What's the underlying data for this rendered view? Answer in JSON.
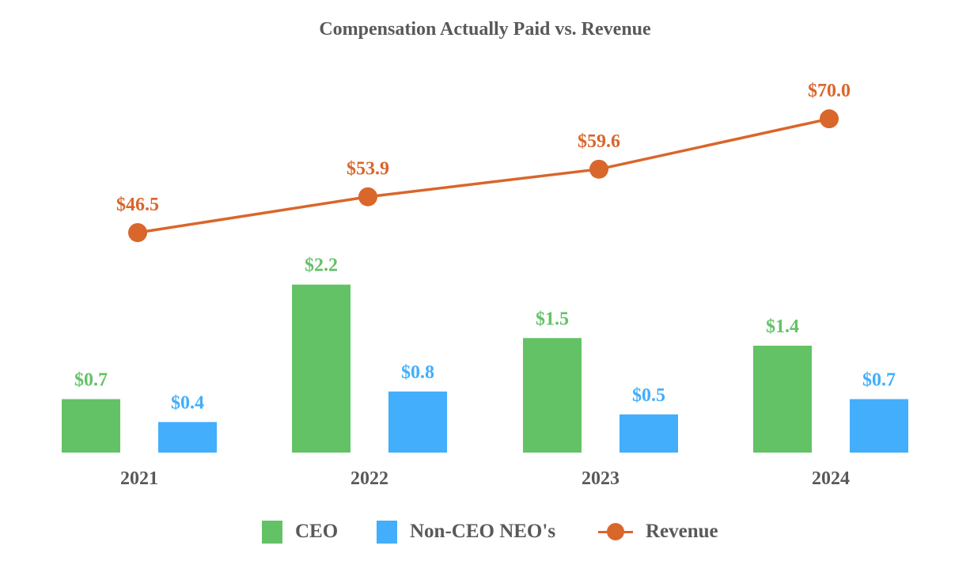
{
  "chart_data": {
    "type": "bar+line",
    "title": "Compensation Actually Paid vs. Revenue",
    "categories": [
      "2021",
      "2022",
      "2023",
      "2024"
    ],
    "series": [
      {
        "name": "CEO",
        "kind": "bar",
        "color": "#63c266",
        "values": [
          0.7,
          2.2,
          1.5,
          1.4
        ],
        "labels": [
          "$0.7",
          "$2.2",
          "$1.5",
          "$1.4"
        ]
      },
      {
        "name": "Non-CEO NEO's",
        "kind": "bar",
        "color": "#42aefc",
        "values": [
          0.4,
          0.8,
          0.5,
          0.7
        ],
        "labels": [
          "$0.4",
          "$0.8",
          "$0.5",
          "$0.7"
        ]
      },
      {
        "name": "Revenue",
        "kind": "line",
        "color": "#d9662b",
        "values": [
          46.5,
          53.9,
          59.6,
          70.0
        ],
        "labels": [
          "$46.5",
          "$53.9",
          "$59.6",
          "$70.0"
        ]
      }
    ],
    "legend": {
      "placement": "bottom-center",
      "entries": [
        "CEO",
        "Non-CEO NEO's",
        "Revenue"
      ]
    },
    "grid": false
  }
}
